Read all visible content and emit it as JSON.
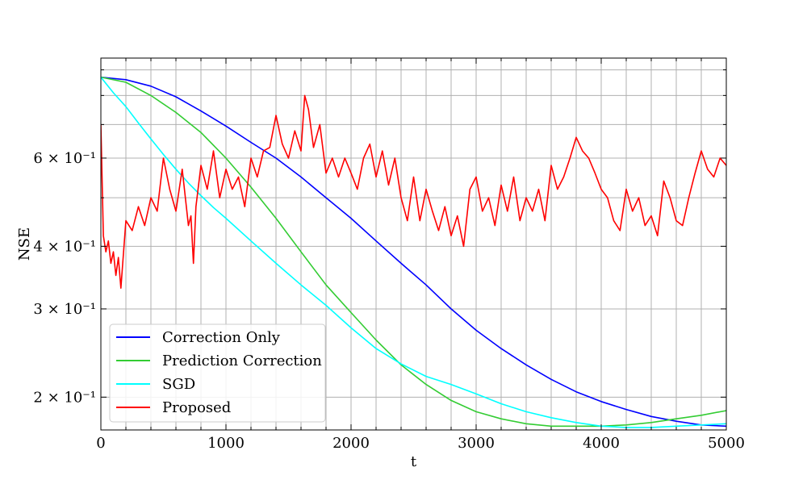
{
  "chart_data": {
    "type": "line",
    "xlabel": "t",
    "ylabel": "NSE",
    "xlim": [
      0,
      5000
    ],
    "ylim": [
      0.172,
      0.95
    ],
    "yscale": "log",
    "grid": true,
    "legend_position": "lower-left",
    "x_ticks": [
      0,
      1000,
      2000,
      3000,
      4000,
      5000
    ],
    "x_tick_labels": [
      "0",
      "1000",
      "2000",
      "3000",
      "4000",
      "5000"
    ],
    "y_ticks": [
      0.2,
      0.3,
      0.4,
      0.6
    ],
    "y_tick_labels": [
      "2 × 10⁻¹",
      "3 × 10⁻¹",
      "4 × 10⁻¹",
      "6 × 10⁻¹"
    ],
    "series": [
      {
        "name": "Correction Only",
        "color": "#0000ff",
        "x": [
          0,
          200,
          400,
          600,
          800,
          1000,
          1200,
          1400,
          1600,
          1800,
          2000,
          2200,
          2400,
          2600,
          2800,
          3000,
          3200,
          3400,
          3600,
          3800,
          4000,
          4200,
          4400,
          4600,
          4800,
          5000
        ],
        "y": [
          0.87,
          0.86,
          0.835,
          0.795,
          0.745,
          0.695,
          0.645,
          0.6,
          0.55,
          0.5,
          0.455,
          0.41,
          0.37,
          0.335,
          0.3,
          0.272,
          0.25,
          0.232,
          0.217,
          0.205,
          0.196,
          0.189,
          0.183,
          0.179,
          0.176,
          0.175
        ]
      },
      {
        "name": "Prediction Correction",
        "color": "#33cc33",
        "x": [
          0,
          200,
          400,
          600,
          800,
          1000,
          1200,
          1400,
          1600,
          1800,
          2000,
          2200,
          2400,
          2600,
          2800,
          3000,
          3200,
          3400,
          3600,
          3800,
          4000,
          4200,
          4400,
          4600,
          4800,
          5000
        ],
        "y": [
          0.87,
          0.85,
          0.8,
          0.74,
          0.675,
          0.6,
          0.525,
          0.455,
          0.39,
          0.335,
          0.295,
          0.26,
          0.232,
          0.212,
          0.197,
          0.187,
          0.181,
          0.177,
          0.175,
          0.175,
          0.175,
          0.176,
          0.178,
          0.181,
          0.184,
          0.188
        ]
      },
      {
        "name": "SGD",
        "color": "#00ffff",
        "x": [
          0,
          100,
          200,
          300,
          400,
          500,
          600,
          700,
          800,
          900,
          1000,
          1200,
          1400,
          1600,
          1800,
          2000,
          2200,
          2400,
          2600,
          2800,
          3000,
          3200,
          3400,
          3600,
          3800,
          4000,
          4200,
          4400,
          4600,
          4800,
          5000
        ],
        "y": [
          0.87,
          0.81,
          0.76,
          0.705,
          0.655,
          0.61,
          0.57,
          0.535,
          0.505,
          0.478,
          0.455,
          0.41,
          0.37,
          0.335,
          0.305,
          0.275,
          0.25,
          0.233,
          0.22,
          0.212,
          0.203,
          0.194,
          0.187,
          0.182,
          0.178,
          0.175,
          0.174,
          0.174,
          0.175,
          0.176,
          0.177
        ]
      },
      {
        "name": "Proposed",
        "color": "#ff0000",
        "x": [
          0,
          20,
          40,
          60,
          80,
          100,
          120,
          140,
          160,
          200,
          250,
          300,
          350,
          400,
          450,
          500,
          550,
          600,
          650,
          700,
          720,
          740,
          760,
          800,
          850,
          900,
          950,
          1000,
          1050,
          1100,
          1150,
          1200,
          1250,
          1300,
          1350,
          1400,
          1450,
          1500,
          1550,
          1600,
          1630,
          1660,
          1700,
          1750,
          1800,
          1850,
          1900,
          1950,
          2000,
          2050,
          2100,
          2150,
          2200,
          2250,
          2300,
          2350,
          2400,
          2450,
          2500,
          2550,
          2600,
          2650,
          2700,
          2750,
          2800,
          2850,
          2900,
          2950,
          3000,
          3050,
          3100,
          3150,
          3200,
          3250,
          3300,
          3350,
          3400,
          3450,
          3500,
          3550,
          3600,
          3650,
          3700,
          3750,
          3800,
          3850,
          3900,
          3950,
          4000,
          4050,
          4100,
          4150,
          4200,
          4250,
          4300,
          4350,
          4400,
          4450,
          4500,
          4550,
          4600,
          4650,
          4700,
          4750,
          4800,
          4850,
          4900,
          4950,
          5000
        ],
        "y": [
          0.7,
          0.42,
          0.39,
          0.41,
          0.37,
          0.39,
          0.35,
          0.38,
          0.33,
          0.45,
          0.43,
          0.48,
          0.44,
          0.5,
          0.47,
          0.6,
          0.52,
          0.47,
          0.57,
          0.44,
          0.46,
          0.37,
          0.48,
          0.58,
          0.52,
          0.62,
          0.5,
          0.57,
          0.52,
          0.55,
          0.48,
          0.6,
          0.55,
          0.62,
          0.63,
          0.73,
          0.64,
          0.6,
          0.68,
          0.62,
          0.8,
          0.75,
          0.63,
          0.7,
          0.56,
          0.6,
          0.55,
          0.6,
          0.56,
          0.52,
          0.6,
          0.64,
          0.55,
          0.62,
          0.53,
          0.6,
          0.5,
          0.45,
          0.55,
          0.45,
          0.52,
          0.47,
          0.43,
          0.48,
          0.42,
          0.46,
          0.4,
          0.52,
          0.55,
          0.47,
          0.5,
          0.44,
          0.53,
          0.47,
          0.55,
          0.45,
          0.5,
          0.47,
          0.52,
          0.45,
          0.58,
          0.52,
          0.55,
          0.6,
          0.66,
          0.62,
          0.6,
          0.56,
          0.52,
          0.5,
          0.45,
          0.43,
          0.52,
          0.47,
          0.5,
          0.44,
          0.46,
          0.42,
          0.54,
          0.5,
          0.45,
          0.44,
          0.5,
          0.56,
          0.62,
          0.57,
          0.55,
          0.6,
          0.58
        ]
      }
    ]
  }
}
